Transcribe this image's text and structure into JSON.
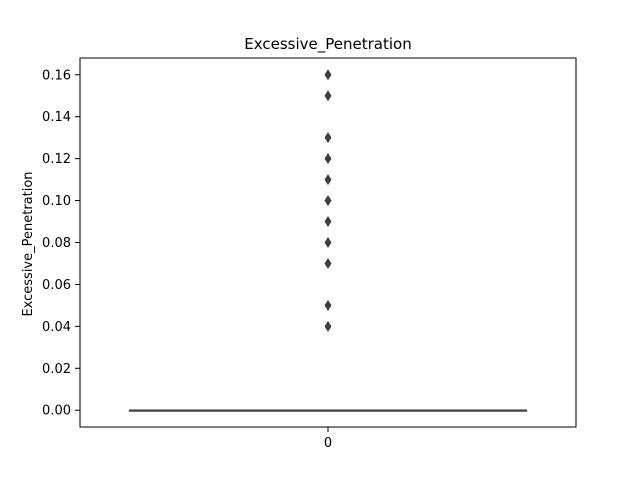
{
  "chart_data": {
    "type": "box",
    "title": "Excessive_Penetration",
    "xlabel": "",
    "ylabel": "Excessive_Penetration",
    "categories": [
      "0"
    ],
    "ylim": [
      -0.008,
      0.168
    ],
    "yticks": [
      0.0,
      0.02,
      0.04,
      0.06,
      0.08,
      0.1,
      0.12,
      0.14,
      0.16
    ],
    "ytick_labels": [
      "0.00",
      "0.02",
      "0.04",
      "0.06",
      "0.08",
      "0.10",
      "0.12",
      "0.14",
      "0.16"
    ],
    "grid": false,
    "box": {
      "min": 0.0,
      "q1": 0.0,
      "median": 0.0,
      "q3": 0.0,
      "max": 0.0
    },
    "outliers": [
      0.04,
      0.05,
      0.07,
      0.08,
      0.09,
      0.1,
      0.11,
      0.12,
      0.13,
      0.15,
      0.16
    ],
    "colors": {
      "box_line": "#3f3f3f",
      "outlier": "#3f3f3f",
      "axes": "#000000"
    }
  }
}
